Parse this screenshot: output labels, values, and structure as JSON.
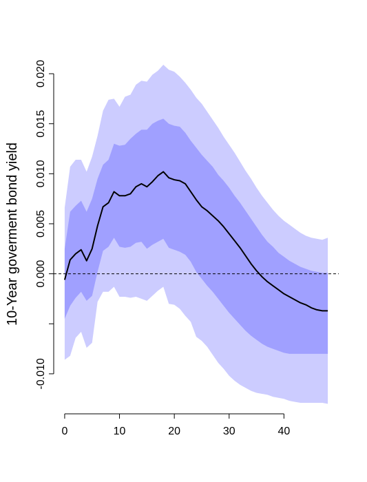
{
  "chart_data": {
    "type": "area",
    "title": "",
    "xlabel": "",
    "ylabel": "10-Year goverment bond yield",
    "xlim": [
      -2,
      50
    ],
    "ylim": [
      -0.014,
      0.022
    ],
    "x_ticks": [
      0,
      10,
      20,
      30,
      40
    ],
    "x_tick_labels": [
      "0",
      "10",
      "20",
      "30",
      "40"
    ],
    "y_ticks": [
      -0.01,
      -0.005,
      0.0,
      0.005,
      0.01,
      0.015,
      0.02
    ],
    "y_tick_labels": [
      "-0.010",
      "",
      "0.000",
      "0.005",
      "0.010",
      "0.015",
      "0.020"
    ],
    "reference_line": {
      "y": 0.0,
      "style": "dashed"
    },
    "grid": false,
    "colors": {
      "outer_band": "#ccccff",
      "inner_band": "#a0a0ff",
      "median": "#000000",
      "reference": "#000000"
    },
    "x": [
      0,
      1,
      2,
      3,
      4,
      5,
      6,
      7,
      8,
      9,
      10,
      11,
      12,
      13,
      14,
      15,
      16,
      17,
      18,
      19,
      20,
      21,
      22,
      23,
      24,
      25,
      26,
      27,
      28,
      29,
      30,
      31,
      32,
      33,
      34,
      35,
      36,
      37,
      38,
      39,
      40,
      41,
      42,
      43,
      44,
      45,
      46,
      47,
      48
    ],
    "series": [
      {
        "name": "",
        "role": "median",
        "values": [
          -0.0006,
          0.0014,
          0.002,
          0.0024,
          0.0013,
          0.0025,
          0.0048,
          0.0067,
          0.0071,
          0.0082,
          0.0078,
          0.0078,
          0.008,
          0.0087,
          0.009,
          0.0087,
          0.0092,
          0.0098,
          0.0102,
          0.0096,
          0.0094,
          0.0093,
          0.009,
          0.0082,
          0.0074,
          0.0067,
          0.0063,
          0.0058,
          0.0053,
          0.0047,
          0.004,
          0.0033,
          0.0026,
          0.0018,
          0.001,
          0.0003,
          -0.0003,
          -0.0008,
          -0.0012,
          -0.0016,
          -0.002,
          -0.0023,
          -0.0026,
          -0.0029,
          -0.0031,
          -0.0034,
          -0.0036,
          -0.0037,
          -0.0037
        ]
      },
      {
        "name": "",
        "role": "inner_upper",
        "values": [
          0.0025,
          0.0062,
          0.0068,
          0.0073,
          0.0062,
          0.0075,
          0.0095,
          0.0109,
          0.0114,
          0.013,
          0.0128,
          0.0129,
          0.0135,
          0.014,
          0.0144,
          0.0144,
          0.015,
          0.0153,
          0.0155,
          0.015,
          0.0148,
          0.0147,
          0.0141,
          0.0133,
          0.0126,
          0.0119,
          0.0113,
          0.0107,
          0.0099,
          0.0093,
          0.0086,
          0.0078,
          0.0071,
          0.0063,
          0.0055,
          0.0047,
          0.0039,
          0.0032,
          0.0027,
          0.0021,
          0.0017,
          0.0013,
          0.001,
          0.0007,
          0.0005,
          0.0003,
          0.0002,
          0.0001,
          0.0001
        ]
      },
      {
        "name": "",
        "role": "inner_lower",
        "values": [
          -0.0045,
          -0.0032,
          -0.0024,
          -0.0018,
          -0.0027,
          -0.0022,
          0.0002,
          0.0023,
          0.0027,
          0.0036,
          0.0027,
          0.0026,
          0.0027,
          0.0031,
          0.0032,
          0.0025,
          0.0029,
          0.0032,
          0.0035,
          0.0026,
          0.0024,
          0.0022,
          0.0019,
          0.0012,
          0.0002,
          -0.0005,
          -0.0012,
          -0.0018,
          -0.0025,
          -0.0032,
          -0.0039,
          -0.0045,
          -0.0051,
          -0.0057,
          -0.0062,
          -0.0066,
          -0.007,
          -0.0073,
          -0.0075,
          -0.0077,
          -0.0079,
          -0.008,
          -0.008,
          -0.008,
          -0.008,
          -0.008,
          -0.008,
          -0.008,
          -0.008
        ]
      },
      {
        "name": "",
        "role": "outer_upper",
        "values": [
          0.0066,
          0.0107,
          0.0114,
          0.0114,
          0.0102,
          0.0117,
          0.0138,
          0.0163,
          0.0174,
          0.0175,
          0.0167,
          0.0177,
          0.0179,
          0.0189,
          0.0193,
          0.0192,
          0.0199,
          0.0203,
          0.0209,
          0.0204,
          0.0202,
          0.0197,
          0.0191,
          0.0184,
          0.0176,
          0.017,
          0.0162,
          0.0154,
          0.0146,
          0.0137,
          0.0129,
          0.0121,
          0.0112,
          0.0103,
          0.0095,
          0.0086,
          0.0078,
          0.0071,
          0.0064,
          0.0058,
          0.0053,
          0.0049,
          0.0045,
          0.0041,
          0.0038,
          0.0036,
          0.0035,
          0.0034,
          0.0036
        ]
      },
      {
        "name": "",
        "role": "outer_lower",
        "values": [
          -0.0086,
          -0.0082,
          -0.0064,
          -0.0058,
          -0.0074,
          -0.0069,
          -0.0028,
          -0.0018,
          -0.0018,
          -0.0013,
          -0.0023,
          -0.0023,
          -0.0024,
          -0.0023,
          -0.0025,
          -0.0027,
          -0.0022,
          -0.0017,
          -0.0013,
          -0.003,
          -0.0031,
          -0.0035,
          -0.0042,
          -0.0048,
          -0.0063,
          -0.0067,
          -0.0073,
          -0.0081,
          -0.0089,
          -0.0095,
          -0.0102,
          -0.0107,
          -0.0111,
          -0.0114,
          -0.0117,
          -0.0119,
          -0.012,
          -0.0121,
          -0.0123,
          -0.0124,
          -0.0125,
          -0.0127,
          -0.0128,
          -0.0129,
          -0.0129,
          -0.0129,
          -0.0129,
          -0.0129,
          -0.013
        ]
      }
    ]
  }
}
